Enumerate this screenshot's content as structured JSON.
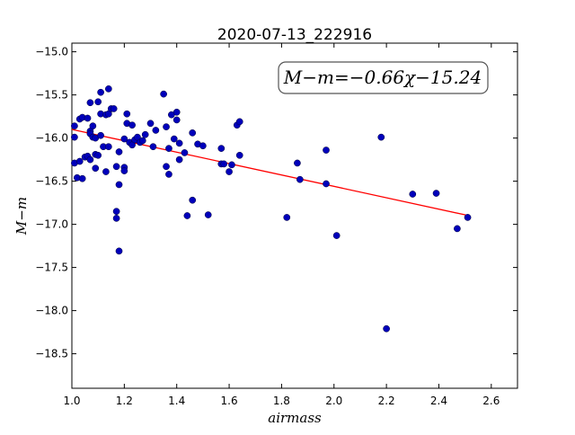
{
  "chart_data": {
    "type": "scatter",
    "title": "2020-07-13_222916",
    "xlabel": "airmass",
    "ylabel": "M−m",
    "xlim": [
      1.0,
      2.7
    ],
    "ylim": [
      -18.9,
      -14.9
    ],
    "y_inverted": true,
    "grid": false,
    "legend": "none",
    "x_ticks": [
      1.0,
      1.2,
      1.4,
      1.6,
      1.8,
      2.0,
      2.2,
      2.4,
      2.6
    ],
    "x_tick_labels": [
      "1.0",
      "1.2",
      "1.4",
      "1.6",
      "1.8",
      "2.0",
      "2.2",
      "2.4",
      "2.6"
    ],
    "y_ticks": [
      -15.0,
      -15.5,
      -16.0,
      -16.5,
      -17.0,
      -17.5,
      -18.0,
      -18.5
    ],
    "y_tick_labels": [
      "−15.0",
      "−15.5",
      "−16.0",
      "−16.5",
      "−17.0",
      "−17.5",
      "−18.0",
      "−18.5"
    ],
    "annotation": "M−m=−0.66χ−15.24",
    "fit": {
      "slope": -0.66,
      "intercept": -15.24,
      "x_range": [
        1.0,
        2.51
      ],
      "color": "#ff0000"
    },
    "point_color": "#0000bb",
    "points": [
      [
        1.01,
        -15.86
      ],
      [
        1.01,
        -15.99
      ],
      [
        1.01,
        -16.29
      ],
      [
        1.02,
        -16.46
      ],
      [
        1.03,
        -15.78
      ],
      [
        1.03,
        -16.27
      ],
      [
        1.04,
        -15.76
      ],
      [
        1.04,
        -16.47
      ],
      [
        1.05,
        -16.22
      ],
      [
        1.06,
        -15.77
      ],
      [
        1.06,
        -16.21
      ],
      [
        1.07,
        -15.59
      ],
      [
        1.07,
        -15.92
      ],
      [
        1.07,
        -15.95
      ],
      [
        1.07,
        -16.25
      ],
      [
        1.08,
        -15.86
      ],
      [
        1.08,
        -15.99
      ],
      [
        1.09,
        -16.0
      ],
      [
        1.09,
        -16.19
      ],
      [
        1.09,
        -16.35
      ],
      [
        1.1,
        -15.58
      ],
      [
        1.1,
        -16.2
      ],
      [
        1.11,
        -15.47
      ],
      [
        1.11,
        -15.72
      ],
      [
        1.11,
        -15.97
      ],
      [
        1.12,
        -16.1
      ],
      [
        1.13,
        -15.73
      ],
      [
        1.13,
        -16.39
      ],
      [
        1.14,
        -15.43
      ],
      [
        1.14,
        -15.72
      ],
      [
        1.14,
        -16.1
      ],
      [
        1.15,
        -15.66
      ],
      [
        1.16,
        -15.66
      ],
      [
        1.17,
        -16.85
      ],
      [
        1.17,
        -16.93
      ],
      [
        1.17,
        -16.33
      ],
      [
        1.18,
        -16.16
      ],
      [
        1.18,
        -16.54
      ],
      [
        1.18,
        -17.31
      ],
      [
        1.2,
        -16.34
      ],
      [
        1.2,
        -16.38
      ],
      [
        1.2,
        -16.01
      ],
      [
        1.21,
        -15.83
      ],
      [
        1.21,
        -15.72
      ],
      [
        1.22,
        -16.05
      ],
      [
        1.23,
        -15.85
      ],
      [
        1.23,
        -16.08
      ],
      [
        1.24,
        -16.02
      ],
      [
        1.25,
        -15.99
      ],
      [
        1.26,
        -16.05
      ],
      [
        1.27,
        -16.03
      ],
      [
        1.28,
        -15.96
      ],
      [
        1.3,
        -15.83
      ],
      [
        1.31,
        -16.1
      ],
      [
        1.32,
        -15.91
      ],
      [
        1.35,
        -15.49
      ],
      [
        1.36,
        -15.87
      ],
      [
        1.36,
        -16.33
      ],
      [
        1.37,
        -16.12
      ],
      [
        1.37,
        -16.42
      ],
      [
        1.38,
        -15.73
      ],
      [
        1.39,
        -16.01
      ],
      [
        1.4,
        -15.7
      ],
      [
        1.4,
        -15.79
      ],
      [
        1.41,
        -16.06
      ],
      [
        1.41,
        -16.25
      ],
      [
        1.43,
        -16.17
      ],
      [
        1.44,
        -16.9
      ],
      [
        1.46,
        -15.94
      ],
      [
        1.46,
        -16.72
      ],
      [
        1.48,
        -16.07
      ],
      [
        1.5,
        -16.09
      ],
      [
        1.52,
        -16.89
      ],
      [
        1.57,
        -16.12
      ],
      [
        1.57,
        -16.3
      ],
      [
        1.58,
        -16.3
      ],
      [
        1.6,
        -16.39
      ],
      [
        1.61,
        -16.31
      ],
      [
        1.63,
        -15.85
      ],
      [
        1.64,
        -15.81
      ],
      [
        1.64,
        -16.2
      ],
      [
        1.82,
        -16.92
      ],
      [
        1.86,
        -16.29
      ],
      [
        1.87,
        -16.48
      ],
      [
        1.97,
        -16.14
      ],
      [
        1.97,
        -16.53
      ],
      [
        2.01,
        -17.13
      ],
      [
        2.18,
        -15.99
      ],
      [
        2.2,
        -18.21
      ],
      [
        2.3,
        -16.65
      ],
      [
        2.39,
        -16.64
      ],
      [
        2.47,
        -17.05
      ],
      [
        2.51,
        -16.92
      ]
    ]
  }
}
